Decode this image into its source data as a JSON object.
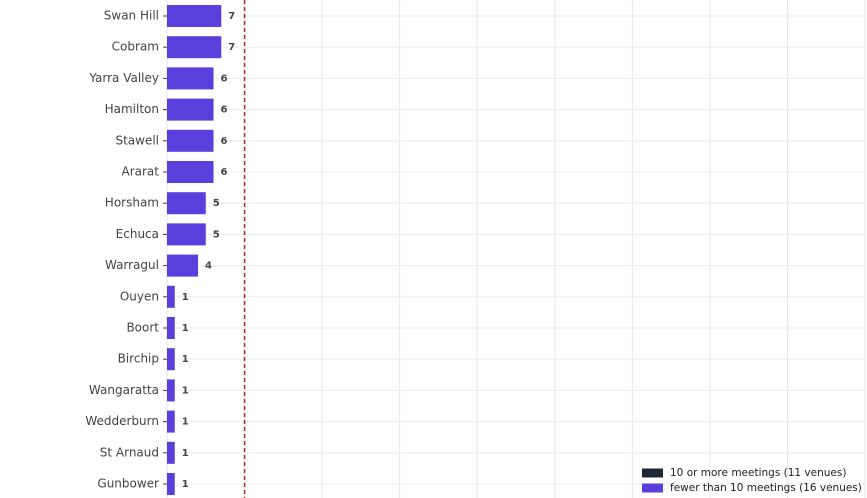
{
  "chart_data": {
    "type": "bar",
    "orientation": "horizontal",
    "categories": [
      "Swan Hill",
      "Cobram",
      "Yarra Valley",
      "Hamilton",
      "Stawell",
      "Ararat",
      "Horsham",
      "Echuca",
      "Warragul",
      "Ouyen",
      "Boort",
      "Birchip",
      "Wangaratta",
      "Wedderburn",
      "St Arnaud",
      "Gunbower"
    ],
    "series": [
      {
        "name": "10 or more meetings (11 venues)",
        "color": "#1e2738",
        "values": [
          null,
          null,
          null,
          null,
          null,
          null,
          null,
          null,
          null,
          null,
          null,
          null,
          null,
          null,
          null,
          null
        ]
      },
      {
        "name": "fewer than 10 meetings (16 venues)",
        "color": "#5b3fdc",
        "values": [
          7,
          7,
          6,
          6,
          6,
          6,
          5,
          5,
          4,
          1,
          1,
          1,
          1,
          1,
          1,
          1
        ]
      }
    ],
    "xlim": [
      0,
      90
    ],
    "xgrid": [
      0,
      10,
      20,
      30,
      40,
      50,
      60,
      70,
      80,
      90
    ],
    "reference_line": {
      "value": 10,
      "color": "#b22222"
    },
    "legend": "bottom-right"
  }
}
